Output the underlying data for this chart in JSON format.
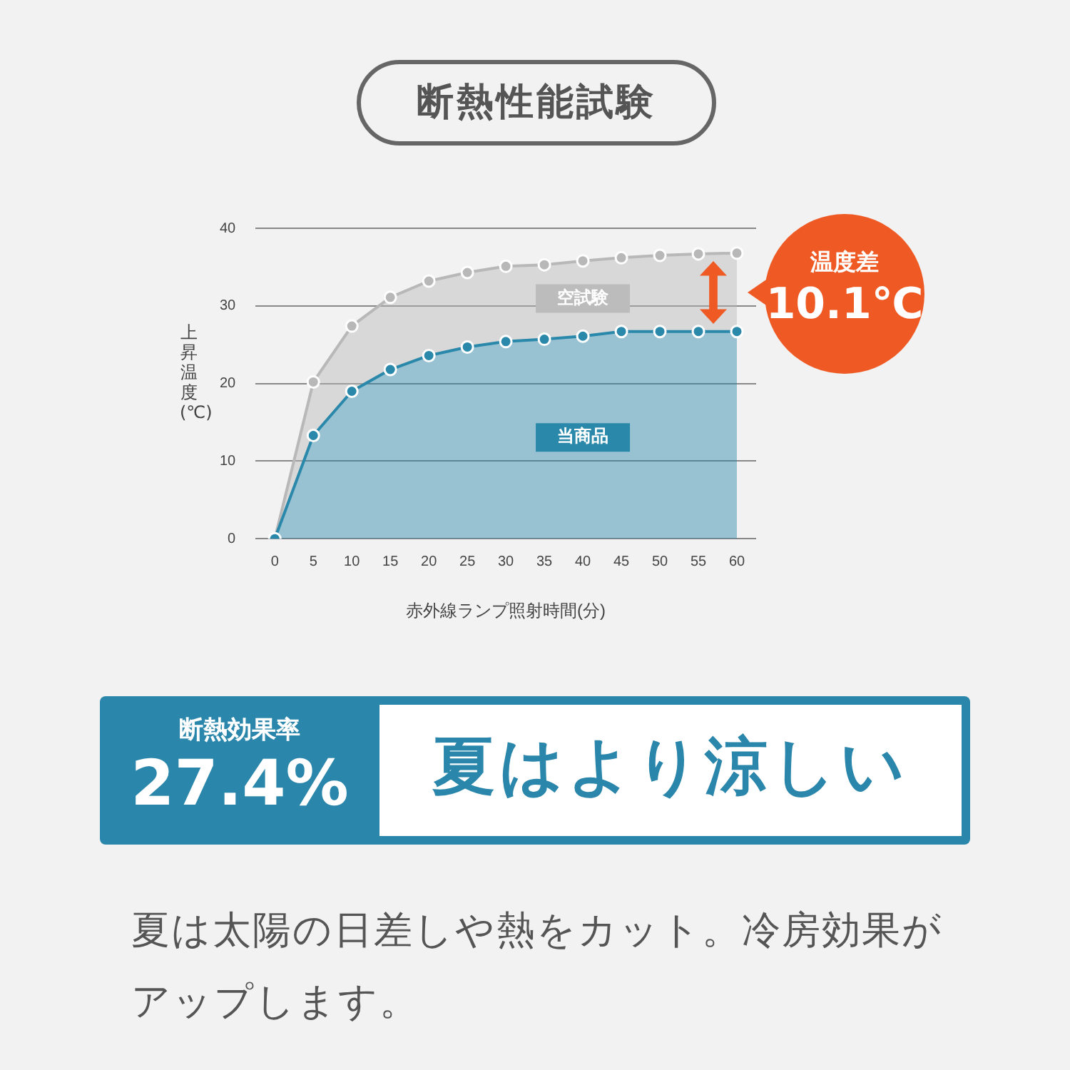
{
  "chart_data": {
    "type": "area",
    "title": "断熱性能試験",
    "xlabel": "赤外線ランプ照射時間(分)",
    "ylabel": "上昇温度(℃)",
    "x": [
      0,
      5,
      10,
      15,
      20,
      25,
      30,
      35,
      40,
      45,
      50,
      55,
      60
    ],
    "series": [
      {
        "name": "当商品",
        "color": "#2a88aa",
        "values": [
          0,
          13.3,
          19.0,
          21.8,
          23.6,
          24.7,
          25.4,
          25.7,
          26.1,
          26.7,
          26.7,
          26.7,
          26.7
        ]
      },
      {
        "name": "空試験",
        "color": "#b8b8b8",
        "values": [
          0,
          20.2,
          27.4,
          31.1,
          33.2,
          34.3,
          35.1,
          35.3,
          35.8,
          36.2,
          36.5,
          36.7,
          36.8
        ]
      }
    ],
    "xlim": [
      -2.5,
      62.5
    ],
    "ylim": [
      0,
      40
    ],
    "xticks": [
      0,
      5,
      10,
      15,
      20,
      25,
      30,
      35,
      40,
      45,
      50,
      55,
      60
    ],
    "yticks": [
      0,
      10,
      20,
      30,
      40
    ],
    "grid": "y",
    "marker": "circle",
    "annotations": [
      "温度差",
      "10.1℃",
      "断熱効果率",
      "27.4%",
      "夏はより涼しい",
      "夏は太陽の日差しや熱をカット。冷房効果がアップします。"
    ]
  }
}
